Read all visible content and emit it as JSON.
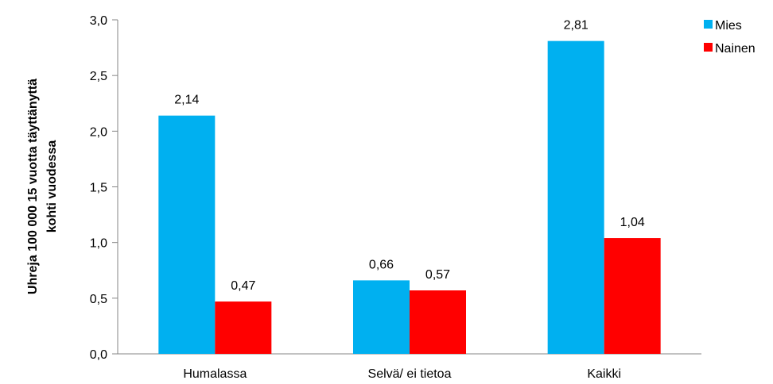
{
  "chart_data": {
    "type": "bar",
    "categories": [
      "Humalassa",
      "Selvä/ ei tietoa",
      "Kaikki"
    ],
    "series": [
      {
        "name": "Mies",
        "values": [
          2.14,
          0.66,
          2.81
        ],
        "labels": [
          "2,14",
          "0,66",
          "2,81"
        ],
        "color": "#00B0F0"
      },
      {
        "name": "Nainen",
        "values": [
          0.47,
          0.57,
          1.04
        ],
        "labels": [
          "0,47",
          "0,57",
          "1,04"
        ],
        "color": "#FF0000"
      }
    ],
    "ylabel": "Uhreja 100 000 15 vuotta täyttänyttä kohti vuodessa",
    "ylabel_lines": [
      "Uhreja 100 000 15 vuotta täyttänyttä",
      "kohti vuodessa"
    ],
    "ylim": [
      0,
      3.0
    ],
    "yticks": [
      0,
      0.5,
      1.0,
      1.5,
      2.0,
      2.5,
      3.0
    ],
    "ytick_labels": [
      "0,0",
      "0,5",
      "1,0",
      "1,5",
      "2,0",
      "2,5",
      "3,0"
    ],
    "grid": false,
    "legend_position": "top-right"
  }
}
